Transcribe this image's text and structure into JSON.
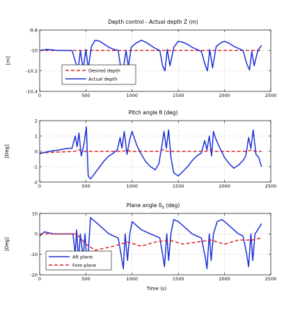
{
  "chart_data": [
    {
      "type": "line",
      "title": "Depth control - Actual depth Z (m)",
      "xlabel": "",
      "ylabel": "[m]",
      "xlim": [
        0,
        2500
      ],
      "ylim": [
        -10.4,
        -9.8
      ],
      "xticks": [
        "0",
        "500",
        "1000",
        "1500",
        "2000",
        "2500"
      ],
      "yticks": [
        "-9.8",
        "-10",
        "-10.2",
        "-10.4"
      ],
      "grid": true,
      "legend_position": "bottom-left",
      "series": [
        {
          "name": "Desired depth",
          "color": "#e02020",
          "dash": "dashed",
          "x": [
            0,
            2400
          ],
          "y": [
            -10,
            -10
          ]
        },
        {
          "name": "Actual depth",
          "color": "#1a2fd6",
          "dash": "solid",
          "x": [
            0,
            80,
            200,
            350,
            390,
            415,
            440,
            470,
            500,
            525,
            560,
            600,
            650,
            700,
            750,
            800,
            850,
            875,
            900,
            935,
            960,
            990,
            1040,
            1100,
            1150,
            1200,
            1250,
            1300,
            1330,
            1355,
            1380,
            1410,
            1450,
            1500,
            1550,
            1600,
            1650,
            1700,
            1750,
            1790,
            1815,
            1840,
            1870,
            1910,
            1970,
            2000,
            2050,
            2100,
            2150,
            2200,
            2240,
            2270,
            2295,
            2320,
            2360,
            2400
          ],
          "y": [
            -10,
            -9.99,
            -10.0,
            -10.0,
            -10.12,
            -10.2,
            -10.0,
            -10.18,
            -9.99,
            -10.18,
            -9.96,
            -9.9,
            -9.91,
            -9.94,
            -9.97,
            -9.99,
            -10.0,
            -10.16,
            -10.2,
            -10.0,
            -10.16,
            -9.97,
            -9.93,
            -9.9,
            -9.92,
            -9.95,
            -9.98,
            -10.0,
            -10.15,
            -10.2,
            -9.99,
            -10.15,
            -9.97,
            -9.91,
            -9.92,
            -9.94,
            -9.97,
            -9.99,
            -10.01,
            -10.14,
            -10.2,
            -9.99,
            -10.17,
            -9.96,
            -9.92,
            -9.91,
            -9.93,
            -9.96,
            -9.98,
            -10.0,
            -10.13,
            -10.19,
            -10.01,
            -10.15,
            -10.0,
            -9.95
          ]
        }
      ]
    },
    {
      "type": "line",
      "title": "Pitch angle θ (deg)",
      "xlabel": "",
      "ylabel": "[Deg]",
      "xlim": [
        0,
        2500
      ],
      "ylim": [
        -2,
        2
      ],
      "xticks": [
        "0",
        "500",
        "1000",
        "1500",
        "2000",
        "2500"
      ],
      "yticks": [
        "2",
        "1",
        "0",
        "-1",
        "-2"
      ],
      "grid": true,
      "legend_position": "none",
      "series": [
        {
          "color": "#e02020",
          "dash": "dashed",
          "x": [
            0,
            380,
            420,
            460,
            500,
            900,
            940,
            980,
            1300,
            1340,
            1380,
            1800,
            1840,
            1880,
            2250,
            2290,
            2330,
            2400
          ],
          "y": [
            -0.1,
            0,
            0.12,
            0,
            0,
            0,
            0.1,
            0,
            0,
            0.12,
            0,
            0,
            0.1,
            0,
            0,
            0.1,
            0,
            0
          ]
        },
        {
          "color": "#1a2fd6",
          "dash": "solid",
          "x": [
            0,
            100,
            200,
            300,
            350,
            385,
            405,
            425,
            450,
            480,
            505,
            525,
            550,
            600,
            650,
            700,
            750,
            800,
            840,
            870,
            890,
            915,
            945,
            975,
            1000,
            1050,
            1100,
            1150,
            1200,
            1250,
            1290,
            1320,
            1345,
            1370,
            1395,
            1420,
            1450,
            1500,
            1550,
            1600,
            1650,
            1700,
            1750,
            1785,
            1810,
            1835,
            1860,
            1880,
            1900,
            1950,
            2000,
            2050,
            2100,
            2150,
            2200,
            2230,
            2260,
            2285,
            2310,
            2340,
            2370,
            2400
          ],
          "y": [
            -0.15,
            0,
            0.08,
            0.2,
            0.2,
            1.0,
            0.3,
            1.2,
            -0.3,
            0.5,
            1.6,
            -1.6,
            -1.8,
            -1.4,
            -1.0,
            -0.6,
            -0.3,
            -0.1,
            0.1,
            0.9,
            0.2,
            1.3,
            -0.2,
            0.8,
            1.3,
            0.4,
            -0.2,
            -0.7,
            -1.0,
            -1.2,
            -0.8,
            0.3,
            1.3,
            0.2,
            1.4,
            -0.4,
            -1.4,
            -1.6,
            -1.3,
            -1.0,
            -0.6,
            -0.3,
            -0.1,
            0.7,
            0.1,
            1.0,
            -0.3,
            1.3,
            0.9,
            0.2,
            -0.4,
            -0.8,
            -1.1,
            -0.9,
            -0.6,
            -0.3,
            0.9,
            0.2,
            1.4,
            -0.2,
            -0.4,
            -1.0
          ]
        }
      ]
    },
    {
      "type": "line",
      "title": "Plane angle δs (deg)",
      "xlabel": "Time (s)",
      "ylabel": "[Deg]",
      "xlim": [
        0,
        2500
      ],
      "ylim": [
        -20,
        10
      ],
      "xticks": [
        "0",
        "500",
        "1000",
        "1500",
        "2000",
        "2500"
      ],
      "yticks": [
        "10",
        "0",
        "-10",
        "-20"
      ],
      "grid": true,
      "legend_position": "bottom-left",
      "series": [
        {
          "name": "Aft plane",
          "color": "#1a2fd6",
          "dash": "solid",
          "x": [
            0,
            50,
            150,
            300,
            360,
            385,
            400,
            420,
            440,
            470,
            490,
            515,
            550,
            600,
            650,
            700,
            750,
            800,
            850,
            880,
            905,
            925,
            950,
            975,
            1000,
            1050,
            1100,
            1150,
            1200,
            1250,
            1300,
            1330,
            1350,
            1375,
            1395,
            1420,
            1450,
            1500,
            1550,
            1600,
            1650,
            1700,
            1750,
            1790,
            1810,
            1835,
            1855,
            1880,
            1920,
            1970,
            2000,
            2050,
            2100,
            2150,
            2200,
            2240,
            2260,
            2285,
            2305,
            2330,
            2360,
            2400
          ],
          "y": [
            -1,
            1,
            0,
            0,
            0,
            -10,
            2,
            -13,
            0,
            -12,
            0,
            -17,
            8,
            6,
            4,
            2,
            0,
            -1,
            -2,
            -10,
            -17,
            0,
            -13,
            0,
            6,
            4,
            2,
            1,
            0,
            -1,
            -2,
            -10,
            -16,
            0,
            -13,
            0,
            7,
            6,
            4,
            2,
            0,
            -1,
            -2,
            -11,
            -17,
            0,
            -13,
            0,
            6,
            7,
            6,
            4,
            2,
            0,
            -1,
            -10,
            -16,
            0,
            -13,
            0,
            2,
            5
          ]
        },
        {
          "name": "Fore plane",
          "color": "#e02020",
          "dash": "dashed",
          "x": [
            0,
            200,
            400,
            500,
            600,
            800,
            950,
            1100,
            1250,
            1400,
            1550,
            1700,
            1850,
            2000,
            2150,
            2300,
            2400
          ],
          "y": [
            0,
            0,
            0,
            -5,
            -8,
            -6,
            -4,
            -6,
            -4,
            -3,
            -5,
            -4,
            -3,
            -5,
            -3,
            -3,
            -2
          ]
        }
      ]
    }
  ]
}
